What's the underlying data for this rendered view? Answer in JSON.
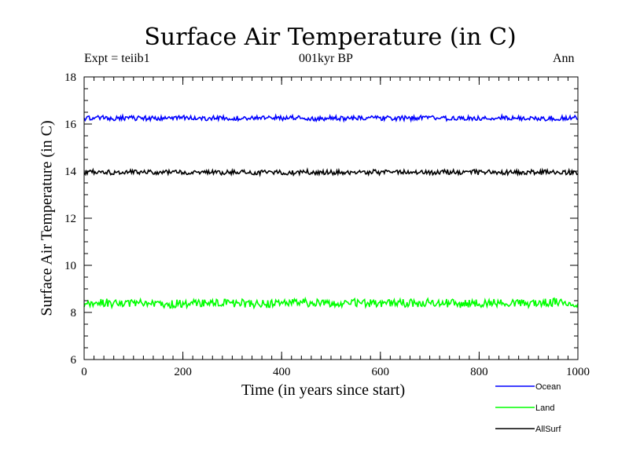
{
  "chart_data": {
    "type": "line",
    "title": "Surface Air Temperature (in C)",
    "subtitle_left": "Expt = teiib1",
    "subtitle_center": "001kyr BP",
    "subtitle_right": "Ann",
    "xlabel": "Time (in years since start)",
    "ylabel": "Surface Air Temperature (in C)",
    "xlim": [
      0,
      1000
    ],
    "ylim": [
      6,
      18
    ],
    "xticks": [
      "0",
      "200",
      "400",
      "600",
      "800",
      "1000"
    ],
    "yticks": [
      "6",
      "8",
      "10",
      "12",
      "14",
      "16",
      "18"
    ],
    "grid": false,
    "legend_position": "bottom-right, outside plot",
    "series": [
      {
        "name": "Ocean",
        "color": "#0000ff",
        "mean": 16.25,
        "noise": 0.1
      },
      {
        "name": "Land",
        "color": "#00ff00",
        "mean": 8.4,
        "noise": 0.17
      },
      {
        "name": "AllSurf",
        "color": "#000000",
        "mean": 13.95,
        "noise": 0.1
      }
    ]
  }
}
